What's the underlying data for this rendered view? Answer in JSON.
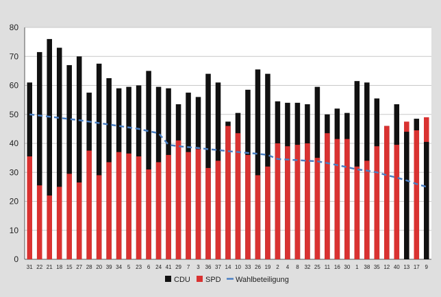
{
  "colors": {
    "background": "#dfdfdf",
    "plot_background": "#ffffff",
    "cdu": "#111111",
    "spd": "#d93231",
    "turnout": "#4a7fc3",
    "grid": "#c8c8c8"
  },
  "chart_data": {
    "type": "bar",
    "title": "",
    "xlabel": "",
    "ylabel": "",
    "ylim": [
      0,
      80
    ],
    "yticks": [
      0,
      10,
      20,
      30,
      40,
      50,
      60,
      70,
      80
    ],
    "grid": true,
    "legend_position": "bottom-center",
    "categories": [
      "31",
      "22",
      "21",
      "18",
      "15",
      "27",
      "28",
      "20",
      "39",
      "34",
      "5",
      "23",
      "6",
      "24",
      "41",
      "29",
      "7",
      "3",
      "36",
      "37",
      "14",
      "10",
      "33",
      "26",
      "19",
      "2",
      "4",
      "8",
      "32",
      "25",
      "11",
      "16",
      "30",
      "1",
      "38",
      "35",
      "12",
      "40",
      "13",
      "17",
      "9"
    ],
    "series": [
      {
        "name": "CDU",
        "type": "bar",
        "color": "#111111",
        "values": [
          61,
          71.5,
          76,
          73,
          67,
          70,
          57.5,
          67.5,
          62.5,
          59,
          59.5,
          60,
          65,
          59.5,
          59,
          53.5,
          57.5,
          56,
          64,
          61,
          47.5,
          50.5,
          58.5,
          65.5,
          64,
          54.5,
          54,
          54,
          53.5,
          59.5,
          50,
          52,
          50.5,
          61.5,
          61,
          55.5,
          46,
          53.5,
          44,
          48.5,
          40.5
        ]
      },
      {
        "name": "SPD",
        "type": "bar",
        "color": "#d93231",
        "values": [
          35.5,
          25.5,
          22,
          25,
          29.5,
          26.5,
          37.5,
          29,
          33.5,
          37,
          36.5,
          35.5,
          31,
          33.5,
          36,
          41,
          37,
          38,
          31.5,
          34,
          46,
          43.5,
          36,
          29,
          32,
          40,
          39,
          39.5,
          40,
          35,
          43.5,
          41.5,
          41.5,
          32,
          34,
          39,
          46,
          39.5,
          47.5,
          44.5,
          49
        ]
      },
      {
        "name": "Wahlbeteiligung",
        "type": "line",
        "style": "dashed",
        "color": "#4a7fc3",
        "values": [
          50,
          49.6,
          49.2,
          48.8,
          48.4,
          48,
          47.5,
          47,
          46.5,
          46,
          45.5,
          45,
          44.2,
          43.5,
          39.5,
          39,
          38.7,
          38.4,
          38,
          37.7,
          37.3,
          37,
          36.7,
          36.4,
          36,
          34.6,
          34.4,
          34.2,
          34,
          33.8,
          33.2,
          32.5,
          31.8,
          31,
          30.6,
          30,
          29,
          28.2,
          27.2,
          26,
          25
        ]
      }
    ]
  }
}
